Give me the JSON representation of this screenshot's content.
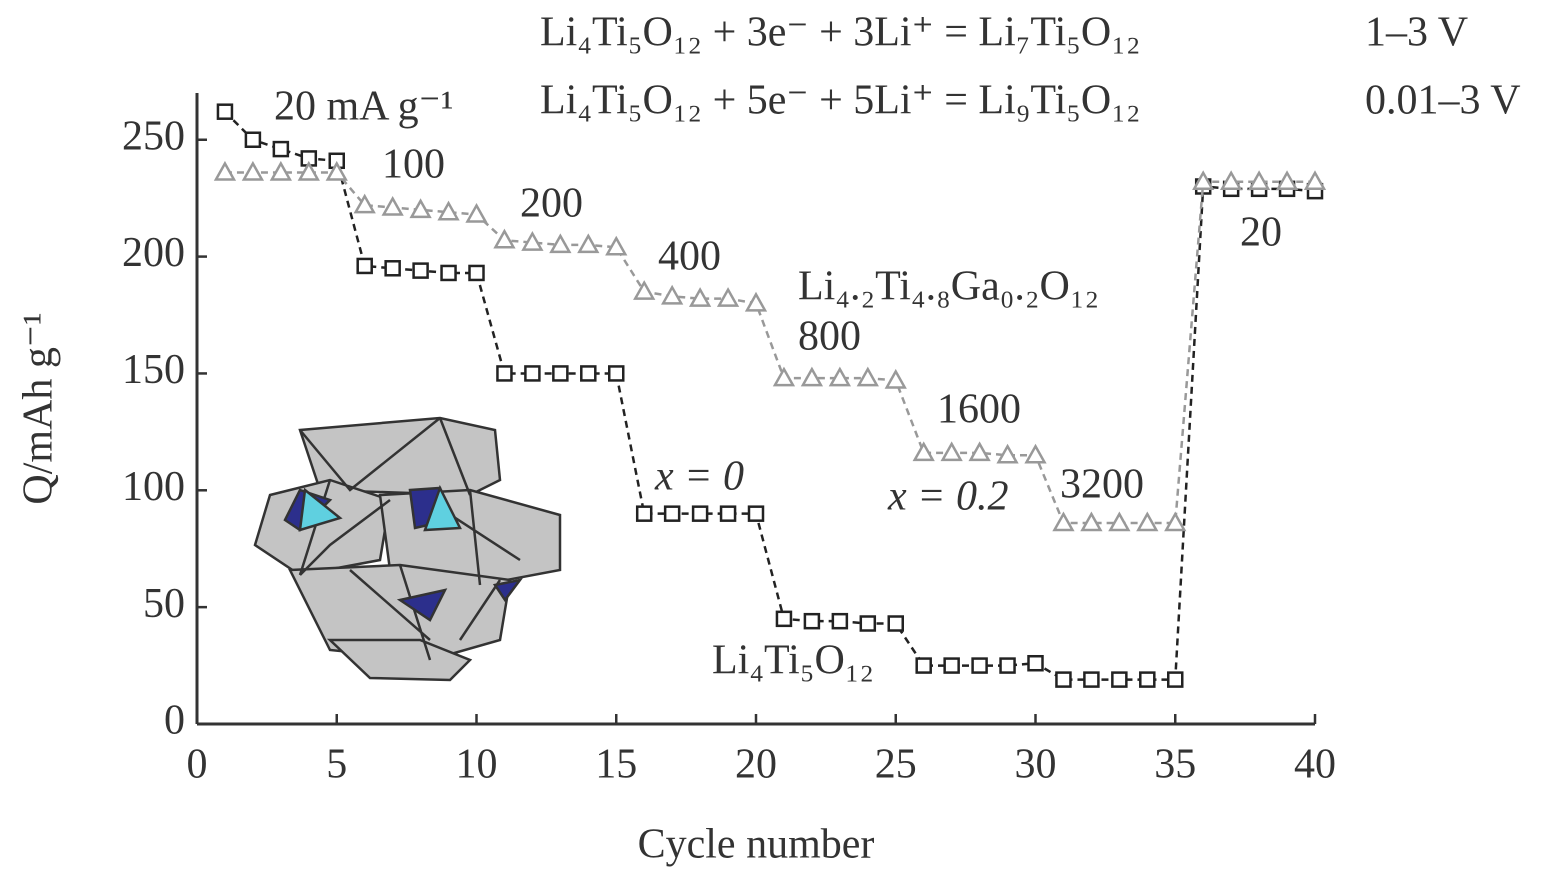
{
  "chart_data": {
    "type": "line",
    "x_label": "Cycle number",
    "y_label": "Q/mAh g⁻¹",
    "x": [
      1,
      2,
      3,
      4,
      5,
      6,
      7,
      8,
      9,
      10,
      11,
      12,
      13,
      14,
      15,
      16,
      17,
      18,
      19,
      20,
      21,
      22,
      23,
      24,
      25,
      26,
      27,
      28,
      29,
      30,
      31,
      32,
      33,
      34,
      35,
      36,
      37,
      38,
      39,
      40
    ],
    "series": [
      {
        "name": "Li₄Ti₅O₁₂",
        "color": "#222222",
        "marker": "square",
        "values": [
          262,
          250,
          246,
          242,
          241,
          196,
          195,
          194,
          193,
          193,
          150,
          150,
          150,
          150,
          150,
          90,
          90,
          90,
          90,
          90,
          45,
          44,
          44,
          43,
          43,
          25,
          25,
          25,
          25,
          26,
          19,
          19,
          19,
          19,
          19,
          230,
          229,
          229,
          229,
          228
        ]
      },
      {
        "name": "Li₄.₂Ti₄.₈Ga₀.₂O₁₂",
        "color": "#999999",
        "marker": "triangle",
        "values": [
          236,
          236,
          236,
          236,
          236,
          222,
          221,
          220,
          219,
          218,
          207,
          206,
          205,
          205,
          204,
          185,
          183,
          182,
          182,
          180,
          148,
          148,
          148,
          148,
          147,
          116,
          116,
          116,
          115,
          115,
          86,
          86,
          86,
          86,
          86,
          232,
          232,
          232,
          232,
          232
        ]
      }
    ],
    "xlim": [
      0,
      40
    ],
    "xticks": [
      0,
      5,
      10,
      15,
      20,
      25,
      30,
      35,
      40
    ],
    "ylim": [
      0,
      270
    ],
    "yticks": [
      0,
      50,
      100,
      150,
      200,
      250
    ],
    "grid": false,
    "annotations": [
      "20 mA g⁻¹",
      "100",
      "200",
      "400",
      "800",
      "1600",
      "3200",
      "20",
      "x = 0",
      "x = 0.2"
    ],
    "equations": [
      "Li₄Ti₅O₁₂ + 3e⁻ + 3Li⁺ = Li₇Ti₅O₁₂",
      "Li₄Ti₅O₁₂ + 5e⁻ + 5Li⁺ = Li₉Ti₅O₁₂"
    ],
    "voltages": [
      "1–3 V",
      "0.01–3 V"
    ]
  }
}
